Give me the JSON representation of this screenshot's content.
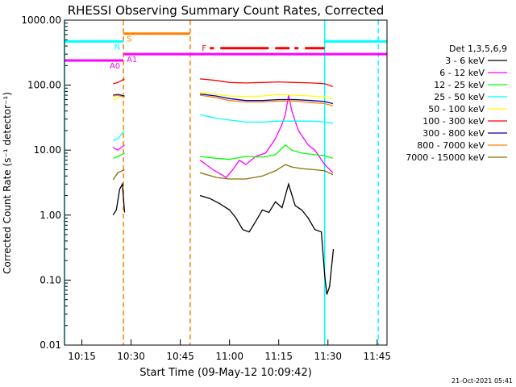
{
  "chart_data": {
    "type": "line",
    "title": "RHESSI Observing Summary Count Rates, Corrected",
    "xlabel": "Start Time (09-May-12 10:09:42)",
    "ylabel": "Corrected Count Rate (s⁻¹ detector⁻¹)",
    "yscale": "log",
    "xlim": [
      "10:09:42",
      "11:48:00"
    ],
    "ylim": [
      0.01,
      1000
    ],
    "x_ticks": [
      "10:15",
      "10:30",
      "10:45",
      "11:00",
      "11:15",
      "11:30",
      "11:45"
    ],
    "y_ticks": [
      "0.01",
      "0.10",
      "1.00",
      "10.00",
      "100.00",
      "1000.00"
    ],
    "legend_title": "Det 1,3,5,6,9",
    "legend_placement": "right",
    "date_stamp": "21-Oct-2021 05:41",
    "series": [
      {
        "name": "3 - 6 keV",
        "color": "#000000",
        "segments": [
          {
            "t": [
              "10:24:30",
              "10:25:30",
              "10:26:30",
              "10:27:20",
              "10:28:00"
            ],
            "v": [
              1.0,
              1.2,
              2.5,
              3.0,
              1.1
            ]
          },
          {
            "t": [
              "10:51:00",
              "10:54:00",
              "10:57:00",
              "11:00:00",
              "11:02:00",
              "11:04:00",
              "11:06:00",
              "11:08:00",
              "11:10:00",
              "11:12:00",
              "11:14:00",
              "11:16:00",
              "11:18:00",
              "11:20:00",
              "11:22:00",
              "11:24:00",
              "11:26:00",
              "11:28:00",
              "11:29:00",
              "11:29:40",
              "11:30:30",
              "11:31:40"
            ],
            "v": [
              2.0,
              1.8,
              1.5,
              1.2,
              0.9,
              0.6,
              0.55,
              0.8,
              1.2,
              1.1,
              1.6,
              1.3,
              3.0,
              1.4,
              1.2,
              0.9,
              0.6,
              0.55,
              0.12,
              0.06,
              0.08,
              0.3
            ]
          }
        ]
      },
      {
        "name": "6 - 12 keV",
        "color": "#ff00ff",
        "segments": [
          {
            "t": [
              "10:24:30",
              "10:26:00",
              "10:28:00"
            ],
            "v": [
              11,
              10,
              12
            ]
          },
          {
            "t": [
              "10:51:00",
              "10:55:00",
              "10:59:00",
              "11:01:00",
              "11:03:00",
              "11:05:00",
              "11:08:00",
              "11:11:00",
              "11:14:00",
              "11:16:00",
              "11:17:00",
              "11:18:00",
              "11:19:00",
              "11:21:00",
              "11:24:00",
              "11:26:00",
              "11:29:00",
              "11:31:30"
            ],
            "v": [
              7,
              5,
              3.8,
              5,
              7,
              6,
              8,
              9,
              15,
              25,
              35,
              70,
              40,
              20,
              12,
              10,
              6,
              4.5
            ]
          }
        ]
      },
      {
        "name": "12 - 25 keV",
        "color": "#00ff00",
        "segments": [
          {
            "t": [
              "10:24:30",
              "10:26:00",
              "10:28:00"
            ],
            "v": [
              7.5,
              8,
              9
            ]
          },
          {
            "t": [
              "10:51:00",
              "10:56:00",
              "11:00:00",
              "11:05:00",
              "11:10:00",
              "11:14:00",
              "11:17:00",
              "11:19:00",
              "11:22:00",
              "11:26:00",
              "11:29:00",
              "11:31:30"
            ],
            "v": [
              8,
              7.5,
              7.2,
              8,
              7.8,
              8.5,
              12,
              10,
              9,
              8.5,
              8.2,
              7.5
            ]
          }
        ]
      },
      {
        "name": "25 - 50 keV",
        "color": "#00ffff",
        "segments": [
          {
            "t": [
              "10:24:30",
              "10:26:00",
              "10:28:00"
            ],
            "v": [
              14,
              15,
              20
            ]
          },
          {
            "t": [
              "10:51:00",
              "10:56:00",
              "11:00:00",
              "11:05:00",
              "11:10:00",
              "11:15:00",
              "11:20:00",
              "11:25:00",
              "11:29:00",
              "11:31:30"
            ],
            "v": [
              35,
              31,
              29,
              27,
              27,
              28,
              28,
              28,
              27,
              26
            ]
          }
        ]
      },
      {
        "name": "50 - 100 keV",
        "color": "#ffff00",
        "segments": [
          {
            "t": [
              "10:24:30",
              "10:26:00",
              "10:28:00"
            ],
            "v": [
              60,
              65,
              72
            ]
          },
          {
            "t": [
              "10:51:00",
              "10:56:00",
              "11:00:00",
              "11:05:00",
              "11:10:00",
              "11:15:00",
              "11:20:00",
              "11:25:00",
              "11:29:00",
              "11:31:30"
            ],
            "v": [
              78,
              72,
              68,
              67,
              68,
              72,
              70,
              68,
              66,
              62
            ]
          }
        ]
      },
      {
        "name": "100 - 300 keV",
        "color": "#ff0000",
        "segments": [
          {
            "t": [
              "10:24:30",
              "10:26:00",
              "10:28:00"
            ],
            "v": [
              105,
              110,
              125
            ]
          },
          {
            "t": [
              "10:51:00",
              "10:56:00",
              "11:00:00",
              "11:05:00",
              "11:10:00",
              "11:15:00",
              "11:20:00",
              "11:25:00",
              "11:29:00",
              "11:31:30"
            ],
            "v": [
              125,
              118,
              110,
              108,
              110,
              112,
              110,
              108,
              105,
              95
            ]
          }
        ]
      },
      {
        "name": "300 - 800 keV",
        "color": "#0000aa",
        "segments": [
          {
            "t": [
              "10:24:30",
              "10:26:00",
              "10:28:00"
            ],
            "v": [
              70,
              72,
              68
            ]
          },
          {
            "t": [
              "10:51:00",
              "10:56:00",
              "11:00:00",
              "11:05:00",
              "11:10:00",
              "11:15:00",
              "11:20:00",
              "11:25:00",
              "11:29:00",
              "11:31:30"
            ],
            "v": [
              73,
              68,
              62,
              58,
              58,
              60,
              60,
              58,
              56,
              52
            ]
          }
        ]
      },
      {
        "name": "800 - 7000 keV",
        "color": "#ff8000",
        "segments": [
          {
            "t": [
              "10:24:30",
              "10:26:00",
              "10:28:00"
            ],
            "v": [
              68,
              70,
              65
            ]
          },
          {
            "t": [
              "10:51:00",
              "10:56:00",
              "11:00:00",
              "11:05:00",
              "11:10:00",
              "11:15:00",
              "11:20:00",
              "11:25:00",
              "11:29:00",
              "11:31:30"
            ],
            "v": [
              70,
              64,
              58,
              55,
              55,
              57,
              57,
              54,
              52,
              48
            ]
          }
        ]
      },
      {
        "name": "7000 - 15000 keV",
        "color": "#8b7000",
        "segments": [
          {
            "t": [
              "10:24:30",
              "10:26:00",
              "10:28:00"
            ],
            "v": [
              3.5,
              4.5,
              5
            ]
          },
          {
            "t": [
              "10:51:00",
              "10:56:00",
              "11:00:00",
              "11:05:00",
              "11:10:00",
              "11:14:00",
              "11:17:00",
              "11:19:00",
              "11:22:00",
              "11:26:00",
              "11:29:00",
              "11:31:30"
            ],
            "v": [
              4.5,
              3.8,
              3.6,
              3.6,
              4.0,
              4.8,
              6.0,
              5.5,
              5.2,
              5.0,
              4.8,
              4.2
            ]
          }
        ]
      }
    ],
    "annotations": {
      "flags": [
        {
          "label": "S",
          "color": "#ff8000",
          "level": 620,
          "start": "10:27:40",
          "end": "10:48:00"
        },
        {
          "label": "N",
          "color": "#00ffff",
          "level": 470,
          "start": "10:09:42",
          "end": "10:27:40"
        },
        {
          "label": "",
          "color": "#00ffff",
          "level": 470,
          "start": "11:29:00",
          "end": "11:48:00"
        },
        {
          "label": "A0",
          "color": "#ff00ff",
          "level": 240,
          "start": "10:09:42",
          "end": "10:27:40"
        },
        {
          "label": "A1",
          "color": "#ff00ff",
          "level": 300,
          "start": "10:27:40",
          "end": "11:48:00"
        },
        {
          "label": "F",
          "color": "#ff0000",
          "level": 370,
          "dashed": true,
          "start": "10:54:00",
          "end": "11:29:00"
        }
      ],
      "vlines": [
        {
          "time": "10:09:42",
          "color": "#00ffff",
          "dashed": false
        },
        {
          "time": "10:27:40",
          "color": "#ff8000",
          "dashed": true
        },
        {
          "time": "10:48:00",
          "color": "#ff8000",
          "dashed": true
        },
        {
          "time": "11:29:00",
          "color": "#00ffff",
          "dashed": false
        },
        {
          "time": "11:45:20",
          "color": "#00ffff",
          "dashed": true
        }
      ]
    }
  }
}
